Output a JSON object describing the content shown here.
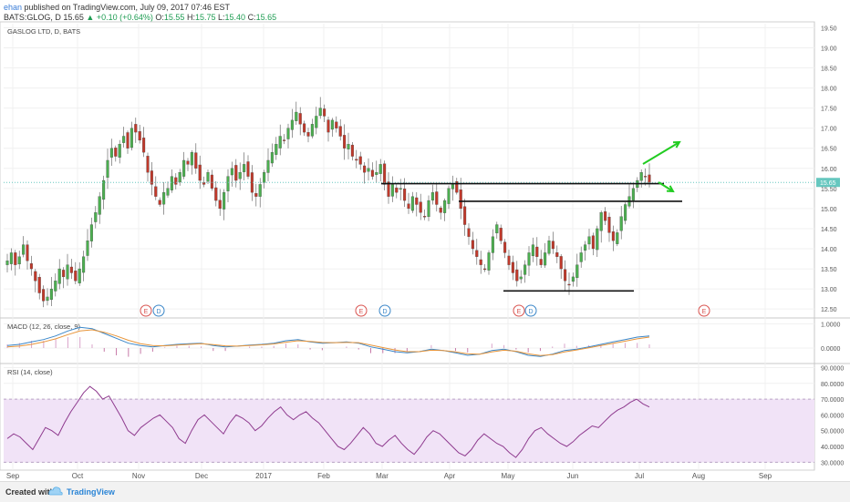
{
  "header": {
    "user": "ehan",
    "publish_text": "published on TradingView.com, July 09, 2017 07:46 EST",
    "symbol": "BATS:GLOG, D",
    "last": "15.65",
    "change": "▲ +0.10 (+0.64%)",
    "o_label": "O:",
    "o_val": "15.55",
    "h_label": "H:",
    "h_val": "15.75",
    "l_label": "L:",
    "l_val": "15.40",
    "c_label": "C:",
    "c_val": "15.65"
  },
  "footer": {
    "created_with": "Created with",
    "brand": "TradingView"
  },
  "colors": {
    "up": "#4caf50",
    "down": "#c0392b",
    "macd": "#3a86c8",
    "signal": "#e8953a",
    "rsi": "#8e3a8e",
    "rsi_band": "#f1e3f7",
    "arrow": "#22cc22",
    "price_tag": "#66c7bf"
  },
  "chart_data": [
    {
      "type": "candlestick",
      "title": "GASLOG LTD, D, BATS",
      "y_ticks": [
        "19.50",
        "19.00",
        "18.50",
        "18.00",
        "17.50",
        "17.00",
        "16.50",
        "16.00",
        "15.50",
        "15.00",
        "14.50",
        "14.00",
        "13.50",
        "13.00",
        "12.50"
      ],
      "ylim": [
        12.3,
        19.6
      ],
      "last_price_label": "15.65",
      "x_labels": [
        "Sep",
        "Oct",
        "Nov",
        "Dec",
        "2017",
        "Feb",
        "Mar",
        "Apr",
        "May",
        "Jun",
        "Jul",
        "Aug",
        "Sep"
      ],
      "events": [
        {
          "date": "Nov",
          "label": "E"
        },
        {
          "date": "Nov",
          "label": "D"
        },
        {
          "date": "Mar",
          "label": "E"
        },
        {
          "date": "Mar",
          "label": "D"
        },
        {
          "date": "May",
          "label": "E"
        },
        {
          "date": "May",
          "label": "D"
        },
        {
          "date": "Aug",
          "label": "E"
        }
      ],
      "closes": [
        13.7,
        13.9,
        13.6,
        13.8,
        14.1,
        13.7,
        13.5,
        13.2,
        12.9,
        12.7,
        12.8,
        13.0,
        13.2,
        13.5,
        13.3,
        13.6,
        13.4,
        13.2,
        13.5,
        13.8,
        14.2,
        14.6,
        14.9,
        15.3,
        15.7,
        16.2,
        16.5,
        16.3,
        16.6,
        16.8,
        16.5,
        17.0,
        16.9,
        16.7,
        16.4,
        15.9,
        15.6,
        15.3,
        15.1,
        15.4,
        15.5,
        15.8,
        15.6,
        15.9,
        16.2,
        16.1,
        16.4,
        16.0,
        15.7,
        15.6,
        15.9,
        15.5,
        15.2,
        15.0,
        15.4,
        15.8,
        16.0,
        15.7,
        15.9,
        16.1,
        15.8,
        15.4,
        15.3,
        15.6,
        15.9,
        16.2,
        16.4,
        16.6,
        16.8,
        16.7,
        17.0,
        17.2,
        17.4,
        17.1,
        16.9,
        16.8,
        17.1,
        17.3,
        17.5,
        17.3,
        16.9,
        17.2,
        17.0,
        16.8,
        16.5,
        16.6,
        16.3,
        16.2,
        16.1,
        15.9,
        16.0,
        15.8,
        15.9,
        16.1,
        15.6,
        15.3,
        15.6,
        15.4,
        15.5,
        15.2,
        15.0,
        15.3,
        15.1,
        14.9,
        14.8,
        15.2,
        15.4,
        15.1,
        14.9,
        15.2,
        15.5,
        15.6,
        15.4,
        15.0,
        14.6,
        14.3,
        14.0,
        13.8,
        13.6,
        13.5,
        13.9,
        14.3,
        14.6,
        14.2,
        13.9,
        13.6,
        13.4,
        13.2,
        13.3,
        13.6,
        13.9,
        14.1,
        13.8,
        13.6,
        13.9,
        14.2,
        14.0,
        13.8,
        13.5,
        13.2,
        13.1,
        13.3,
        13.6,
        13.9,
        14.1,
        14.3,
        14.0,
        14.5,
        14.9,
        14.7,
        14.4,
        14.2,
        14.4,
        14.8,
        15.1,
        15.3,
        15.5,
        15.7,
        15.9,
        15.8,
        15.65
      ],
      "annotations": [
        {
          "type": "horizontal",
          "price": 15.62,
          "from": "Mar",
          "to": "Jul"
        },
        {
          "type": "horizontal",
          "price": 15.18,
          "from": "Apr",
          "to": "Jul"
        },
        {
          "type": "horizontal",
          "price": 12.95,
          "from": "May",
          "to": "Jun"
        },
        {
          "type": "arrow",
          "direction": "up"
        },
        {
          "type": "arrow",
          "direction": "down"
        }
      ]
    },
    {
      "type": "line",
      "title": "MACD (12, 26, close, 9)",
      "y_ticks": [
        "1.0000",
        "0.0000"
      ],
      "ylim": [
        -0.6,
        1.2
      ],
      "series": [
        {
          "values": [
            0.1,
            0.15,
            0.25,
            0.35,
            0.5,
            0.7,
            0.85,
            0.8,
            0.6,
            0.4,
            0.2,
            0.1,
            0.05,
            0.1,
            0.15,
            0.18,
            0.2,
            0.1,
            0.05,
            0.08,
            0.12,
            0.15,
            0.2,
            0.3,
            0.35,
            0.25,
            0.2,
            0.22,
            0.25,
            0.2,
            0.05,
            -0.05,
            -0.15,
            -0.2,
            -0.15,
            -0.05,
            -0.1,
            -0.2,
            -0.3,
            -0.25,
            -0.1,
            -0.05,
            -0.15,
            -0.3,
            -0.35,
            -0.25,
            -0.1,
            -0.05,
            0.05,
            0.15,
            0.25,
            0.35,
            0.45,
            0.5
          ]
        },
        {
          "values": [
            0.05,
            0.08,
            0.15,
            0.25,
            0.38,
            0.55,
            0.7,
            0.75,
            0.65,
            0.5,
            0.32,
            0.18,
            0.1,
            0.09,
            0.12,
            0.15,
            0.18,
            0.14,
            0.09,
            0.08,
            0.1,
            0.13,
            0.17,
            0.24,
            0.3,
            0.27,
            0.23,
            0.22,
            0.23,
            0.22,
            0.12,
            0.02,
            -0.08,
            -0.15,
            -0.15,
            -0.09,
            -0.1,
            -0.16,
            -0.24,
            -0.25,
            -0.16,
            -0.09,
            -0.13,
            -0.24,
            -0.31,
            -0.27,
            -0.16,
            -0.08,
            0.01,
            0.1,
            0.19,
            0.28,
            0.38,
            0.45
          ]
        }
      ]
    },
    {
      "type": "line",
      "title": "RSI (14, close)",
      "y_ticks": [
        "90.0000",
        "80.0000",
        "70.0000",
        "60.0000",
        "50.0000",
        "40.0000",
        "30.0000"
      ],
      "ylim": [
        25,
        92
      ],
      "band": [
        30,
        70
      ],
      "series": [
        {
          "values": [
            45,
            48,
            46,
            42,
            38,
            45,
            52,
            50,
            47,
            55,
            62,
            68,
            74,
            78,
            75,
            70,
            72,
            65,
            58,
            50,
            47,
            52,
            55,
            58,
            60,
            56,
            52,
            45,
            42,
            50,
            57,
            60,
            56,
            52,
            48,
            55,
            60,
            58,
            55,
            50,
            53,
            58,
            62,
            65,
            60,
            57,
            60,
            62,
            58,
            55,
            50,
            45,
            40,
            38,
            42,
            47,
            52,
            48,
            42,
            40,
            44,
            47,
            42,
            38,
            35,
            40,
            46,
            50,
            48,
            44,
            40,
            36,
            34,
            38,
            44,
            48,
            45,
            42,
            40,
            36,
            33,
            38,
            45,
            50,
            52,
            48,
            45,
            42,
            40,
            43,
            47,
            50,
            53,
            52,
            56,
            60,
            63,
            65,
            68,
            70,
            67,
            65
          ]
        }
      ]
    }
  ]
}
